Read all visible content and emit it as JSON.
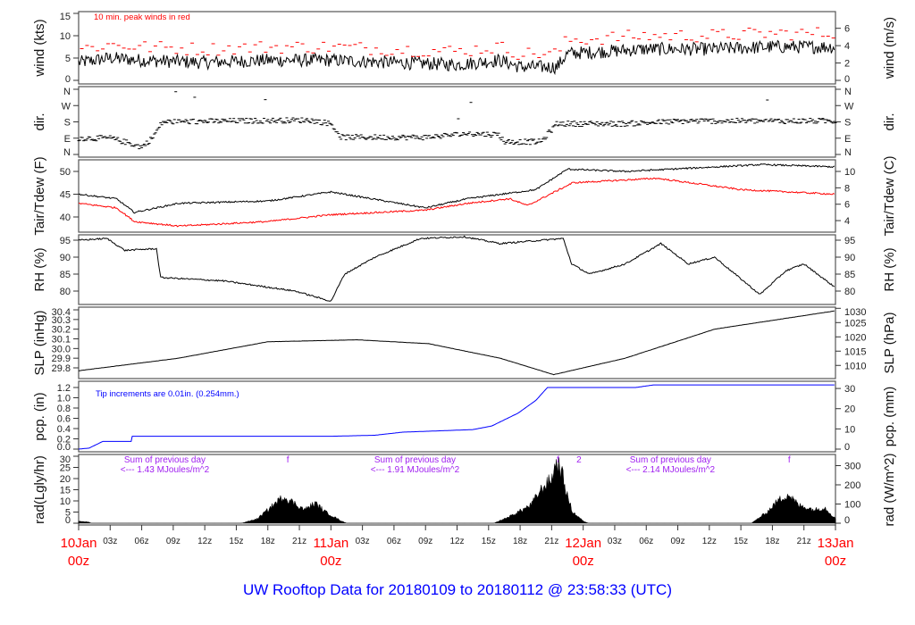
{
  "title": "UW Rooftop Data for 20180109  to  20180112 @ 23:58:33  (UTC)",
  "colors": {
    "peak": "#ff0000",
    "dew": "#ff0000",
    "pcp": "#0000ff",
    "title": "#0000ff",
    "rad_note": "#a020f0",
    "day_label": "#ff0000",
    "line": "#000000"
  },
  "chart_data": {
    "type": "line",
    "x_hours_range": [
      0,
      72
    ],
    "x_ticks": {
      "hour_labels": [
        "03z",
        "06z",
        "09z",
        "12z",
        "15z",
        "18z",
        "21z",
        "03z",
        "06z",
        "09z",
        "12z",
        "15z",
        "18z",
        "21z",
        "03z",
        "06z",
        "09z",
        "12z",
        "15z",
        "18z",
        "21z"
      ],
      "hour_positions": [
        3,
        6,
        9,
        12,
        15,
        18,
        21,
        27,
        30,
        33,
        36,
        39,
        42,
        45,
        51,
        54,
        57,
        60,
        63,
        66,
        69
      ],
      "day_labels": [
        {
          "hour": 0,
          "day": "10Jan",
          "time": "00z"
        },
        {
          "hour": 24,
          "day": "11Jan",
          "time": "00z"
        },
        {
          "hour": 48,
          "day": "12Jan",
          "time": "00z"
        },
        {
          "hour": 72,
          "day": "13Jan",
          "time": "00z"
        }
      ]
    },
    "panels": [
      {
        "id": "wind",
        "ylabel_left": "wind (kts)",
        "ylabel_right": "wind (m/s)",
        "ylim": [
          0,
          15
        ],
        "left_ticks": [
          "0",
          "5",
          "10",
          "15"
        ],
        "right_ticks": [
          "0",
          "2",
          "4",
          "6"
        ],
        "annotation": "10 min. peak winds in red",
        "series": [
          {
            "name": "wind speed",
            "points": [
              [
                0,
                4
              ],
              [
                3,
                5
              ],
              [
                6,
                4.5
              ],
              [
                12,
                4
              ],
              [
                18,
                4.5
              ],
              [
                24,
                4.5
              ],
              [
                30,
                4
              ],
              [
                36,
                3.5
              ],
              [
                40,
                4.5
              ],
              [
                42,
                3
              ],
              [
                45.5,
                3
              ],
              [
                46.5,
                6
              ],
              [
                54,
                7
              ],
              [
                60,
                7
              ],
              [
                66,
                7.5
              ],
              [
                72,
                7.5
              ]
            ]
          }
        ]
      },
      {
        "id": "dir",
        "ylabel_left": "dir.",
        "ylabel_right": "dir.",
        "ylim": [
          0,
          360
        ],
        "left_ticks": [
          "N",
          "E",
          "S",
          "W",
          "N"
        ],
        "right_ticks": [
          "N",
          "E",
          "S",
          "W",
          "N"
        ],
        "series": [
          {
            "name": "wind direction (deg)",
            "points": [
              [
                0,
                90
              ],
              [
                3,
                90
              ],
              [
                5,
                60
              ],
              [
                6,
                40
              ],
              [
                7,
                90
              ],
              [
                8,
                180
              ],
              [
                22,
                190
              ],
              [
                24,
                170
              ],
              [
                25,
                95
              ],
              [
                33,
                95
              ],
              [
                37,
                115
              ],
              [
                40,
                110
              ],
              [
                40.5,
                70
              ],
              [
                44,
                70
              ],
              [
                45.5,
                170
              ],
              [
                52,
                170
              ],
              [
                58,
                185
              ],
              [
                72,
                185
              ]
            ]
          }
        ]
      },
      {
        "id": "temp",
        "ylabel_left": "Tair/Tdew (F)",
        "ylabel_right": "Tair/Tdew (C)",
        "ylim": [
          37,
          52.5
        ],
        "left_ticks": [
          "40",
          "45",
          "50"
        ],
        "right_ticks": [
          "4",
          "6",
          "8",
          "10"
        ],
        "series": [
          {
            "name": "Tair",
            "points": [
              [
                0,
                45
              ],
              [
                3.6,
                44
              ],
              [
                5.3,
                41
              ],
              [
                9.5,
                43
              ],
              [
                18,
                43.5
              ],
              [
                24,
                45.5
              ],
              [
                33,
                42
              ],
              [
                37,
                44
              ],
              [
                43.5,
                46
              ],
              [
                46.5,
                50.5
              ],
              [
                52,
                50
              ],
              [
                65,
                51.5
              ],
              [
                72,
                51
              ]
            ]
          },
          {
            "name": "Tdew",
            "points": [
              [
                0,
                43
              ],
              [
                3.6,
                42
              ],
              [
                5.3,
                39
              ],
              [
                9.5,
                38
              ],
              [
                18,
                39
              ],
              [
                24,
                40.5
              ],
              [
                33,
                41.5
              ],
              [
                37,
                43
              ],
              [
                41,
                44
              ],
              [
                42.7,
                42.5
              ],
              [
                47,
                47.5
              ],
              [
                55,
                48.5
              ],
              [
                63,
                46
              ],
              [
                72,
                45
              ]
            ]
          }
        ]
      },
      {
        "id": "rh",
        "ylabel_left": "RH (%)",
        "ylabel_right": "RH (%)",
        "ylim": [
          77,
          97
        ],
        "left_ticks": [
          "80",
          "85",
          "90",
          "95"
        ],
        "right_ticks": [
          "80",
          "85",
          "90",
          "95"
        ],
        "series": [
          {
            "name": "RH",
            "points": [
              [
                0,
                95
              ],
              [
                2.7,
                95.5
              ],
              [
                4.4,
                92
              ],
              [
                7.4,
                92.5
              ],
              [
                7.8,
                84
              ],
              [
                13.8,
                83
              ],
              [
                20.6,
                80
              ],
              [
                24,
                77
              ],
              [
                25.3,
                85
              ],
              [
                28.2,
                90
              ],
              [
                32.5,
                95.5
              ],
              [
                36.7,
                96
              ],
              [
                40.1,
                94
              ],
              [
                46.1,
                95.5
              ],
              [
                46.9,
                88
              ],
              [
                48.6,
                85
              ],
              [
                52,
                88
              ],
              [
                55.4,
                94
              ],
              [
                58,
                88
              ],
              [
                60.5,
                90
              ],
              [
                64.8,
                79
              ],
              [
                67.3,
                86
              ],
              [
                69,
                88
              ],
              [
                72,
                81
              ]
            ]
          }
        ]
      },
      {
        "id": "slp",
        "ylabel_left": "SLP (inHg)",
        "ylabel_right": "SLP (hPa)",
        "ylim": [
          29.7,
          30.42
        ],
        "left_ticks": [
          "29.8",
          "29.9",
          "30.0",
          "30.1",
          "30.2",
          "30.3",
          "30.4"
        ],
        "right_ticks": [
          "1010",
          "1015",
          "1020",
          "1025",
          "1030"
        ],
        "series": [
          {
            "name": "SLP",
            "points": [
              [
                0,
                29.77
              ],
              [
                9.5,
                29.9
              ],
              [
                18,
                30.07
              ],
              [
                26.5,
                30.09
              ],
              [
                33.3,
                30.05
              ],
              [
                40.1,
                29.9
              ],
              [
                45.2,
                29.73
              ],
              [
                52,
                29.9
              ],
              [
                60.5,
                30.2
              ],
              [
                72,
                30.39
              ]
            ]
          }
        ]
      },
      {
        "id": "pcp",
        "ylabel_left": "pcp. (in)",
        "ylabel_right": "pcp. (mm)",
        "ylim": [
          0,
          1.25
        ],
        "left_ticks": [
          "0.0",
          "0.2",
          "0.4",
          "0.6",
          "0.8",
          "1.0",
          "1.2"
        ],
        "right_ticks": [
          "0",
          "10",
          "20",
          "30"
        ],
        "annotation": "Tip increments are 0.01in. (0.254mm.)",
        "series": [
          {
            "name": "accumulated precipitation",
            "points": [
              [
                0,
                0
              ],
              [
                1,
                0.02
              ],
              [
                2.3,
                0.15
              ],
              [
                5,
                0.15
              ],
              [
                5.1,
                0.25
              ],
              [
                24,
                0.25
              ],
              [
                28.2,
                0.27
              ],
              [
                30.8,
                0.33
              ],
              [
                37.5,
                0.38
              ],
              [
                39.3,
                0.45
              ],
              [
                41.8,
                0.7
              ],
              [
                43.5,
                0.95
              ],
              [
                44.6,
                1.2
              ],
              [
                53,
                1.2
              ],
              [
                54.7,
                1.25
              ],
              [
                72,
                1.25
              ]
            ]
          }
        ]
      },
      {
        "id": "rad",
        "ylabel_left": "rad(Lgly/hr)",
        "ylabel_right": "rad (W/m^2)",
        "ylim": [
          0,
          30
        ],
        "left_ticks": [
          "0",
          "5",
          "10",
          "15",
          "20",
          "25",
          "30"
        ],
        "right_ticks": [
          "0",
          "100",
          "200",
          "300"
        ],
        "notes": [
          {
            "hour": 8.2,
            "line1": "Sum of previous day",
            "line2": "<--- 1.43 MJoules/m^2"
          },
          {
            "hour": 32.0,
            "line1": "Sum of previous day",
            "line2": "<--- 1.91 MJoules/m^2"
          },
          {
            "hour": 56.3,
            "line1": "Sum of previous day",
            "line2": "<--- 2.14 MJoules/m^2"
          }
        ],
        "markers": [
          {
            "hour": 19.9,
            "text": "f"
          },
          {
            "hour": 45.6,
            "text": "f"
          },
          {
            "hour": 47.6,
            "text": "2"
          },
          {
            "hour": 67.6,
            "text": "f"
          }
        ],
        "series": [
          {
            "name": "solar radiation",
            "points": [
              [
                0,
                1
              ],
              [
                1,
                0.5
              ],
              [
                1.2,
                0
              ],
              [
                15.5,
                0
              ],
              [
                17,
                2
              ],
              [
                18.5,
                8
              ],
              [
                19.5,
                12
              ],
              [
                20.5,
                9
              ],
              [
                21.5,
                6
              ],
              [
                22.5,
                9
              ],
              [
                23.5,
                5
              ],
              [
                25,
                1
              ],
              [
                25.5,
                0
              ],
              [
                39.5,
                0
              ],
              [
                41,
                3
              ],
              [
                43,
                8
              ],
              [
                44,
                15
              ],
              [
                45,
                20
              ],
              [
                45.5,
                28
              ],
              [
                46,
                22
              ],
              [
                46.5,
                12
              ],
              [
                47,
                5
              ],
              [
                48,
                1
              ],
              [
                48.5,
                0
              ],
              [
                64,
                0
              ],
              [
                65.5,
                5
              ],
              [
                66.5,
                10
              ],
              [
                67.5,
                13
              ],
              [
                68.5,
                8
              ],
              [
                70,
                6
              ],
              [
                71,
                7
              ],
              [
                72,
                2
              ]
            ]
          }
        ]
      }
    ]
  }
}
